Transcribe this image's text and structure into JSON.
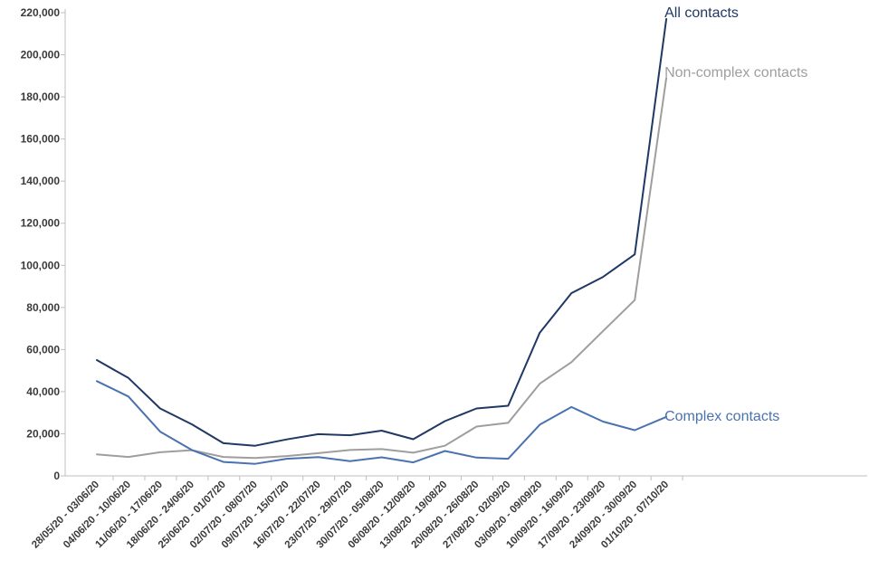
{
  "chart_data": {
    "type": "line",
    "title": "",
    "xlabel": "",
    "ylabel": "",
    "ylim": [
      0,
      220000
    ],
    "yticks": [
      0,
      20000,
      40000,
      60000,
      80000,
      100000,
      120000,
      140000,
      160000,
      180000,
      200000,
      220000
    ],
    "ytick_labels": [
      "0",
      "20,000",
      "40,000",
      "60,000",
      "80,000",
      "100,000",
      "120,000",
      "140,000",
      "160,000",
      "180,000",
      "200,000",
      "220,000"
    ],
    "grid": false,
    "legend": "inline-labels-at-line-ends",
    "categories": [
      "28/05/20 - 03/06/20",
      "04/06/20 - 10/06/20",
      "11/06/20 - 17/06/20",
      "18/06/20 - 24/06/20",
      "25/06/20 - 01/07/20",
      "02/07/20 - 08/07/20",
      "09/07/20 - 15/07/20",
      "16/07/20 - 22/07/20",
      "23/07/20 - 29/07/20",
      "30/07/20 - 05/08/20",
      "06/08/20 - 12/08/20",
      "13/08/20 - 19/08/20",
      "20/08/20 - 26/08/20",
      "27/08/20 - 02/09/20",
      "03/09/20 - 09/09/20",
      "10/09/20 - 16/09/20",
      "17/09/20 - 23/09/20",
      "24/09/20 - 30/09/20",
      "01/10/20 - 07/10/20"
    ],
    "series": [
      {
        "name": "All contacts",
        "color": "#1f3864",
        "values": [
          55000,
          46500,
          32000,
          24500,
          15500,
          14300,
          17300,
          19800,
          19300,
          21500,
          17400,
          26000,
          32000,
          33300,
          68000,
          86800,
          94500,
          105200,
          217000
        ]
      },
      {
        "name": "Non-complex contacts",
        "color": "#9e9e9e",
        "values": [
          10200,
          9000,
          11200,
          12200,
          9000,
          8500,
          9400,
          10800,
          12300,
          12700,
          11000,
          14300,
          23400,
          25200,
          43800,
          54000,
          68800,
          83500,
          189000
        ]
      },
      {
        "name": "Complex contacts",
        "color": "#4a72b0",
        "values": [
          45000,
          37700,
          21000,
          12300,
          6600,
          5700,
          8100,
          8900,
          7000,
          8800,
          6400,
          11800,
          8700,
          8100,
          24300,
          32700,
          25800,
          21700,
          28000
        ]
      }
    ]
  }
}
